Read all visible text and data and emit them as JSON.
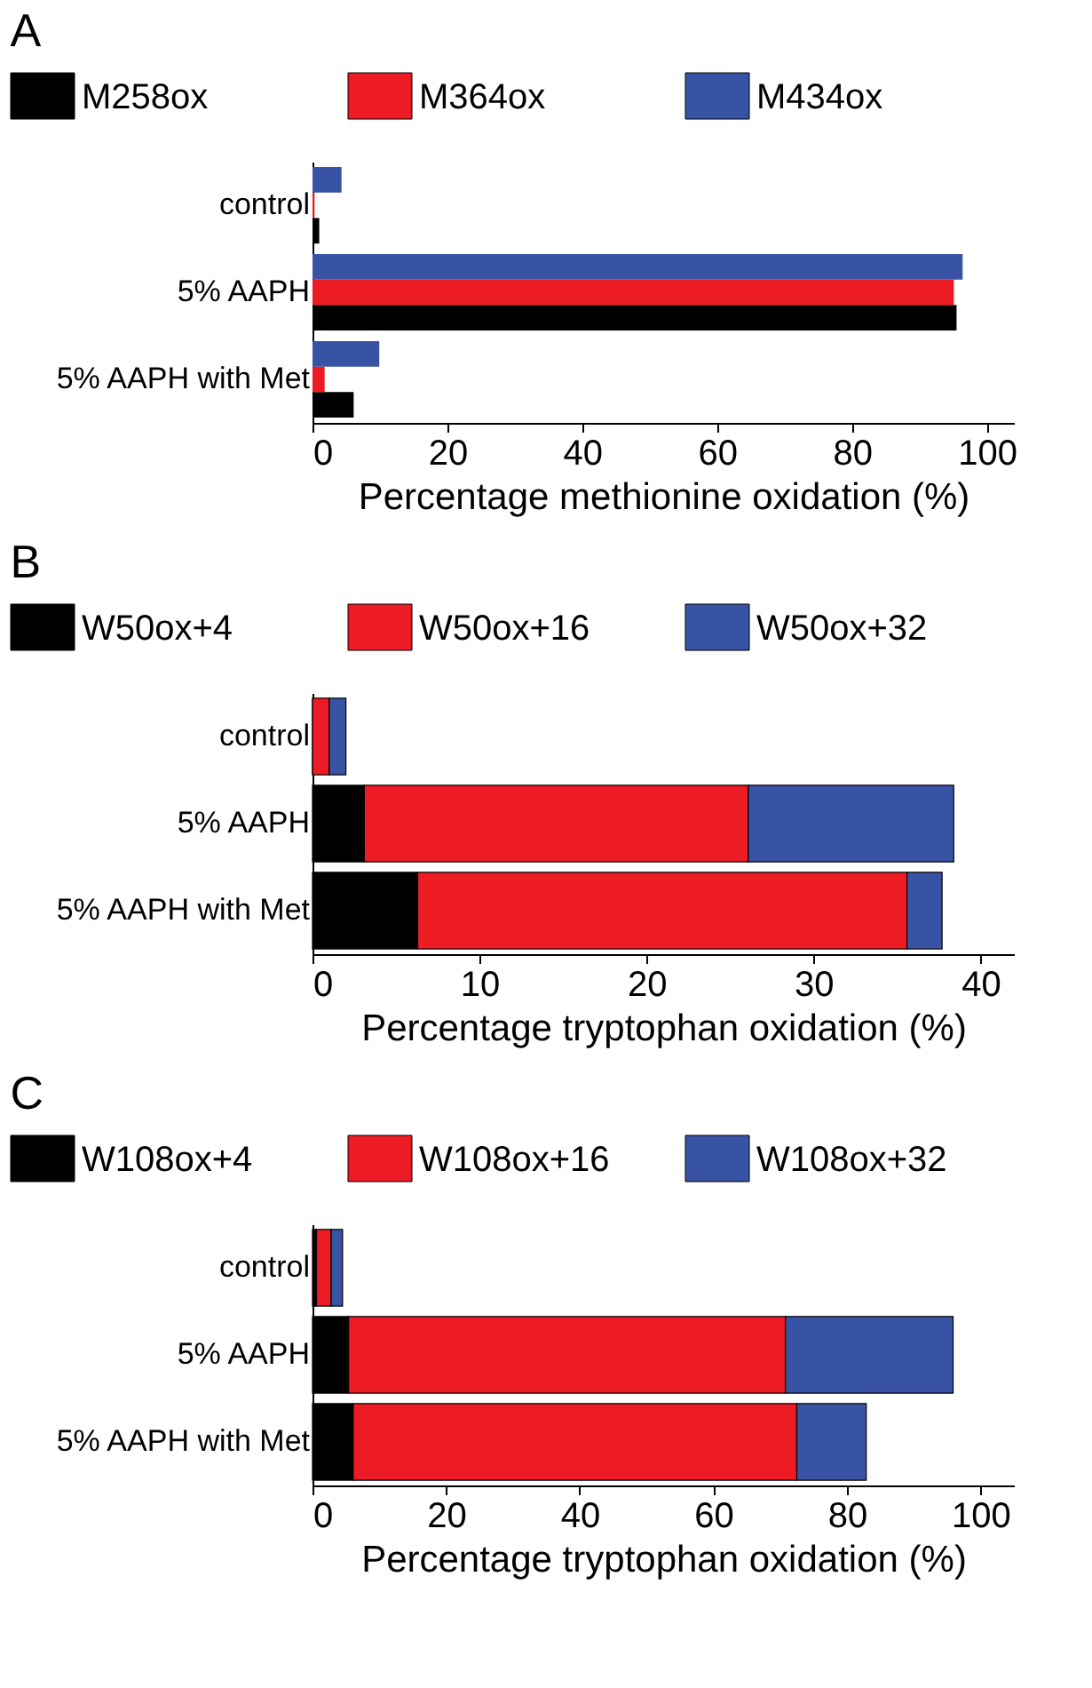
{
  "chart_data": [
    {
      "type": "bar",
      "title": "A",
      "orientation": "horizontal",
      "categories": [
        "control",
        "5% AAPH",
        "5% AAPH with Met"
      ],
      "xlabel": "Percentage methionine oxidation (%)",
      "xlim": [
        0,
        104
      ],
      "xticks": [
        0,
        20,
        40,
        60,
        80,
        100
      ],
      "legend": "top",
      "grid": false,
      "series": [
        {
          "name": "M258ox",
          "color": "#000000",
          "values": [
            1.0,
            95.5,
            6.1
          ]
        },
        {
          "name": "M364ox",
          "color": "#ed1c24",
          "values": [
            0.3,
            95.1,
            1.8
          ]
        },
        {
          "name": "M434ox",
          "color": "#3953a4",
          "values": [
            4.3,
            96.4,
            9.9
          ]
        }
      ]
    },
    {
      "type": "bar",
      "title": "B",
      "orientation": "horizontal",
      "stacked": true,
      "categories": [
        "control",
        "5% AAPH",
        "5% AAPH with Met"
      ],
      "xlabel": "Percentage tryptophan oxidation (%)",
      "xlim": [
        0,
        42
      ],
      "xticks": [
        0,
        10,
        20,
        30,
        40
      ],
      "legend": "top",
      "grid": false,
      "series": [
        {
          "name": "W50ox+4",
          "color": "#000000",
          "values": [
            0,
            3.1,
            6.3
          ]
        },
        {
          "name": "W50ox+16",
          "color": "#ed1c24",
          "values": [
            1.0,
            23.0,
            29.3
          ]
        },
        {
          "name": "W50ox+32",
          "color": "#3953a4",
          "values": [
            1.0,
            12.3,
            2.1
          ]
        }
      ]
    },
    {
      "type": "bar",
      "title": "C",
      "orientation": "horizontal",
      "stacked": true,
      "categories": [
        "control",
        "5% AAPH",
        "5% AAPH with Met"
      ],
      "xlabel": "Percentage tryptophan oxidation (%)",
      "xlim": [
        0,
        105
      ],
      "xticks": [
        0,
        20,
        40,
        60,
        80,
        100
      ],
      "legend": "top",
      "grid": false,
      "series": [
        {
          "name": "W108ox+4",
          "color": "#000000",
          "values": [
            0.6,
            5.4,
            6.1
          ]
        },
        {
          "name": "W108ox+16",
          "color": "#ed1c24",
          "values": [
            2.2,
            65.4,
            66.4
          ]
        },
        {
          "name": "W108ox+32",
          "color": "#3953a4",
          "values": [
            1.7,
            25.1,
            10.4
          ]
        }
      ]
    }
  ]
}
